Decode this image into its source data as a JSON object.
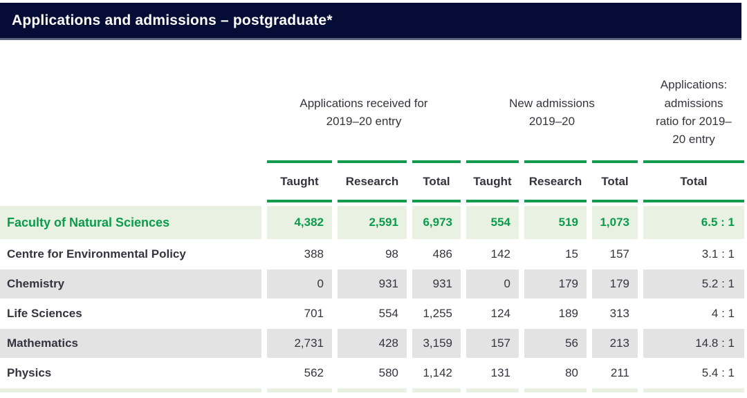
{
  "colors": {
    "title_bar_navy": "#050d36",
    "accent_green": "#149a4e",
    "highlight_green_text": "#0b9b4c",
    "highlight_row_bg": "#e8f1e2",
    "zebra_gray": "#e3e3e3",
    "body_text": "#34343f"
  },
  "chart_data": {
    "type": "table",
    "title": "Applications and admissions – postgraduate*",
    "column_groups": [
      {
        "label": "Applications received for 2019–20 entry",
        "span": 3
      },
      {
        "label": "New admissions 2019–20",
        "span": 3
      },
      {
        "label": "Applications: admissions ratio for 2019–20 entry",
        "span": 1
      }
    ],
    "columns": [
      "Taught",
      "Research",
      "Total",
      "Taught",
      "Research",
      "Total",
      "Total"
    ],
    "rows": [
      {
        "label": "Faculty of Natural Sciences",
        "highlight": true,
        "values": [
          "4,382",
          "2,591",
          "6,973",
          "554",
          "519",
          "1,073",
          "6.5 : 1"
        ]
      },
      {
        "label": "Centre for Environmental Policy",
        "highlight": false,
        "values": [
          "388",
          "98",
          "486",
          "142",
          "15",
          "157",
          "3.1 : 1"
        ]
      },
      {
        "label": "Chemistry",
        "highlight": false,
        "values": [
          "0",
          "931",
          "931",
          "0",
          "179",
          "179",
          "5.2 : 1"
        ]
      },
      {
        "label": "Life Sciences",
        "highlight": false,
        "values": [
          "701",
          "554",
          "1,255",
          "124",
          "189",
          "313",
          "4 : 1"
        ]
      },
      {
        "label": "Mathematics",
        "highlight": false,
        "values": [
          "2,731",
          "428",
          "3,159",
          "157",
          "56",
          "213",
          "14.8 : 1"
        ]
      },
      {
        "label": "Physics",
        "highlight": false,
        "values": [
          "562",
          "580",
          "1,142",
          "131",
          "80",
          "211",
          "5.4 : 1"
        ]
      }
    ]
  }
}
